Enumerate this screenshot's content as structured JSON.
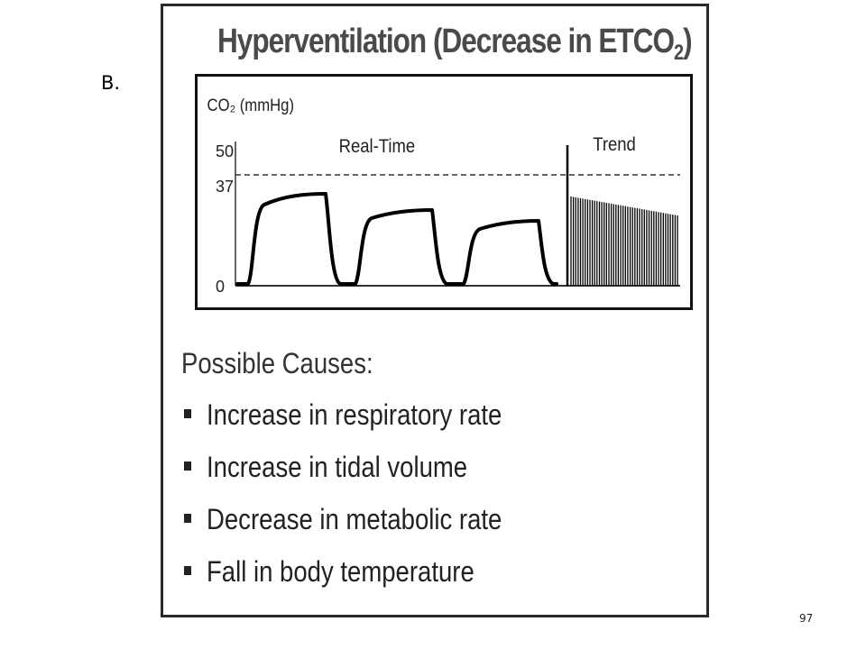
{
  "slide": {
    "label": "B.",
    "page_number": "97"
  },
  "figure": {
    "title_main": "Hyperventilation (Decrease in ETCO",
    "title_sub": "2",
    "title_end": ")",
    "capnogram": {
      "y_axis_label": "CO₂ (mmHg)",
      "y_ticks": [
        "50",
        "37",
        "0"
      ],
      "realtime_label": "Real-Time",
      "trend_label": "Trend"
    },
    "causes_heading": "Possible Causes:",
    "causes": [
      "Increase in respiratory rate",
      "Increase in tidal volume",
      "Decrease in metabolic rate",
      "Fall in body temperature"
    ]
  },
  "chart_data": {
    "type": "line",
    "ylabel": "CO₂ (mmHg)",
    "ylim": [
      0,
      50
    ],
    "y_ticks": [
      0,
      37,
      50
    ],
    "reference_line_mmHg": 41,
    "realtime_breaths": [
      {
        "plateau_start_mmHg": 31,
        "plateau_end_mmHg": 34
      },
      {
        "plateau_start_mmHg": 26,
        "plateau_end_mmHg": 28
      },
      {
        "plateau_start_mmHg": 22,
        "plateau_end_mmHg": 24
      }
    ],
    "trend": {
      "start_mmHg": 33,
      "end_mmHg": 26
    },
    "colors": {
      "trace": "#000000",
      "reference": "#333333"
    }
  }
}
